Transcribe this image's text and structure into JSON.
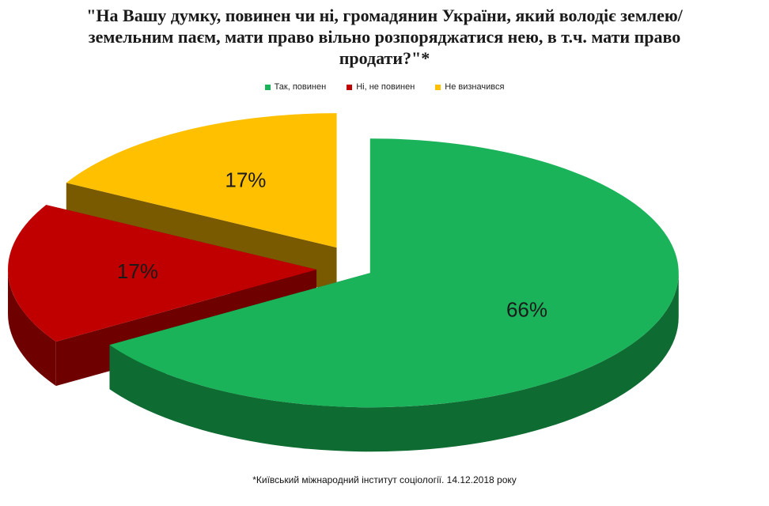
{
  "chart_data": {
    "type": "pie",
    "title": "\"На Вашу думку, повинен чи ні, громадянин України, який володіє землею/земельним паєм, мати право вільно розпоряджатися нею, в т.ч. мати право продати?\"*",
    "categories": [
      "Так, повинен",
      "Ні, не повинен",
      "Не визначився"
    ],
    "values": [
      66,
      17,
      17
    ],
    "labels": [
      "66%",
      "17%",
      "17%"
    ],
    "colors": [
      "#1bb35a",
      "#c00000",
      "#ffc000"
    ],
    "side_colors": [
      "#0e6b32",
      "#6e0000",
      "#7a5a00"
    ],
    "legend_position": "top",
    "exploded": true
  },
  "footnote": "*Київський міжнародний інститут соціології. 14.12.2018  року"
}
